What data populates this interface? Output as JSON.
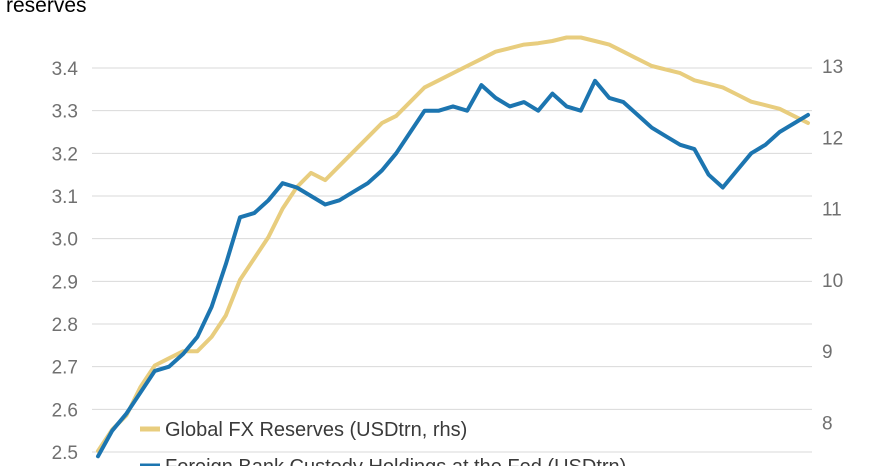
{
  "title": "reserves",
  "chart_data": {
    "type": "line",
    "left_axis": {
      "ylim": [
        2.5,
        3.4
      ],
      "ticks": [
        "2.5",
        "2.6",
        "2.7",
        "2.8",
        "2.9",
        "3.0",
        "3.1",
        "3.2",
        "3.3",
        "3.4"
      ]
    },
    "right_axis": {
      "ylim": [
        8,
        13
      ],
      "ticks": [
        "8",
        "9",
        "10",
        "11",
        "12",
        "13"
      ]
    },
    "grid": true,
    "legend_position": "bottom-left",
    "series": [
      {
        "name": "Global FX Reserves (USDtrn, rhs)",
        "axis": "right",
        "color": "#e8cd7e",
        "x": [
          0,
          2,
          4,
          6,
          8,
          10,
          12,
          14,
          16,
          18,
          20,
          22,
          24,
          26,
          28,
          30,
          32,
          34,
          36,
          38,
          40,
          42,
          44,
          46,
          48,
          50,
          52,
          54,
          56,
          58,
          60,
          62,
          64,
          66,
          68,
          70,
          72,
          74,
          76,
          78,
          80,
          82,
          84,
          86,
          88,
          90,
          92,
          94,
          96,
          98,
          100
        ],
        "values": [
          7.6,
          7.9,
          8.1,
          8.5,
          8.8,
          8.9,
          9.0,
          9.0,
          9.2,
          9.5,
          10.0,
          10.3,
          10.6,
          11.0,
          11.3,
          11.5,
          11.4,
          11.6,
          11.8,
          12.0,
          12.2,
          12.3,
          12.5,
          12.7,
          12.8,
          12.9,
          13.0,
          13.1,
          13.2,
          13.25,
          13.3,
          13.32,
          13.35,
          13.4,
          13.4,
          13.35,
          13.3,
          13.2,
          13.1,
          13.0,
          12.95,
          12.9,
          12.8,
          12.75,
          12.7,
          12.6,
          12.5,
          12.45,
          12.4,
          12.3,
          12.2
        ]
      },
      {
        "name": "Foreign Bank Custody Holdings at the Fed (USDtrn)",
        "axis": "left",
        "color": "#1c75b0",
        "x": [
          0,
          2,
          4,
          6,
          8,
          10,
          12,
          14,
          16,
          18,
          20,
          22,
          24,
          26,
          28,
          30,
          32,
          34,
          36,
          38,
          40,
          42,
          44,
          46,
          48,
          50,
          52,
          54,
          56,
          58,
          60,
          62,
          64,
          66,
          68,
          70,
          72,
          74,
          76,
          78,
          80,
          82,
          84,
          86,
          88,
          90,
          92,
          94,
          96,
          98,
          100
        ],
        "values": [
          2.49,
          2.55,
          2.59,
          2.64,
          2.69,
          2.7,
          2.73,
          2.77,
          2.84,
          2.94,
          3.05,
          3.06,
          3.09,
          3.13,
          3.12,
          3.1,
          3.08,
          3.09,
          3.11,
          3.13,
          3.16,
          3.2,
          3.25,
          3.3,
          3.3,
          3.31,
          3.3,
          3.36,
          3.33,
          3.31,
          3.32,
          3.3,
          3.34,
          3.31,
          3.3,
          3.37,
          3.33,
          3.32,
          3.29,
          3.26,
          3.24,
          3.22,
          3.21,
          3.15,
          3.12,
          3.16,
          3.2,
          3.22,
          3.25,
          3.27,
          3.29
        ]
      }
    ]
  }
}
